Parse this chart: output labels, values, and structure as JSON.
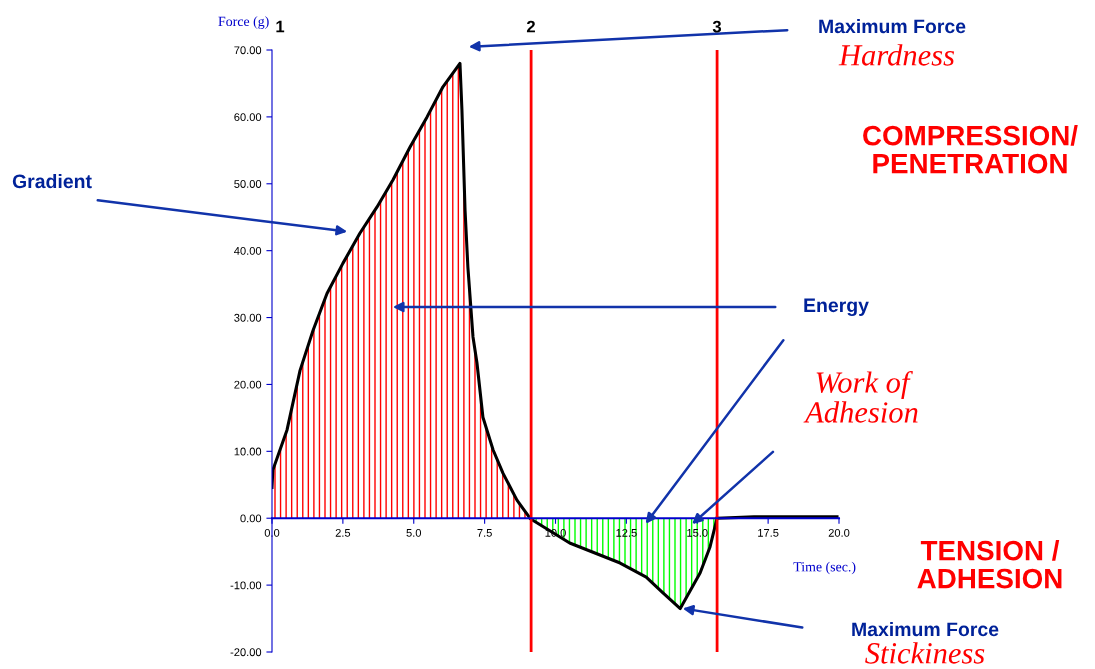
{
  "chart_data": {
    "type": "area",
    "xlabel": "Time (sec.)",
    "ylabel": "Force (g)",
    "xlim": [
      0,
      20
    ],
    "ylim": [
      -20,
      70
    ],
    "xticks": [
      {
        "value": 0,
        "label": "0.0"
      },
      {
        "value": 2.5,
        "label": "2.5"
      },
      {
        "value": 5,
        "label": "5.0"
      },
      {
        "value": 7.5,
        "label": "7.5"
      },
      {
        "value": 10,
        "label": "10.0"
      },
      {
        "value": 12.5,
        "label": "12.5"
      },
      {
        "value": 15,
        "label": "15.0"
      },
      {
        "value": 17.5,
        "label": "17.5"
      },
      {
        "value": 20,
        "label": "20.0"
      }
    ],
    "yticks": [
      {
        "value": -20,
        "label": "-20.00"
      },
      {
        "value": -10,
        "label": "-10.00"
      },
      {
        "value": 0,
        "label": "0.00"
      },
      {
        "value": 10,
        "label": "10.00"
      },
      {
        "value": 20,
        "label": "20.00"
      },
      {
        "value": 30,
        "label": "30.00"
      },
      {
        "value": 40,
        "label": "40.00"
      },
      {
        "value": 50,
        "label": "50.00"
      },
      {
        "value": 60,
        "label": "60.00"
      },
      {
        "value": 70,
        "label": "70.00"
      }
    ],
    "grid": false,
    "series": [
      {
        "color": "#ff0000",
        "x": [
          0,
          0.03,
          0.53,
          0.99,
          1.45,
          1.94,
          2.5,
          3.1,
          3.7,
          4.27,
          4.87,
          5.47,
          6.03,
          6.63,
          6.7,
          6.81,
          6.91,
          7.09,
          7.23,
          7.44,
          7.8,
          8.15,
          8.64,
          9.1
        ],
        "values": [
          4.6,
          7.2,
          13.2,
          22.1,
          28.1,
          33.6,
          38.1,
          42.6,
          46.5,
          50.6,
          55.5,
          60,
          64.5,
          68,
          61,
          46,
          37.5,
          27.1,
          23.2,
          15.1,
          10.2,
          6.7,
          2.7,
          0
        ]
      },
      {
        "color": "#00ff00",
        "x": [
          9.1,
          9.2,
          10.5,
          12.28,
          13.2,
          13.8,
          14.4,
          15.1,
          15.45,
          15.7
        ],
        "values": [
          0,
          -0.3,
          -3.7,
          -6.7,
          -8.8,
          -11.2,
          -13.5,
          -8.2,
          -4.3,
          0
        ]
      },
      {
        "type": "line",
        "color": "#000000",
        "x": [
          15.7,
          17,
          18.5,
          19.93
        ],
        "values": [
          0,
          0.2,
          0.2,
          0.2
        ]
      }
    ],
    "ref_lines": [
      {
        "axis": "x",
        "value": 9.14,
        "color": "#ff0000"
      },
      {
        "axis": "x",
        "value": 15.7,
        "color": "#ff0000"
      }
    ],
    "annotations": [
      "Maximum Force",
      "Hardness",
      "COMPRESSION/\nPENETRATION",
      "Gradient",
      "Energy",
      "Work of\nAdhesion",
      "TENSION /\nADHESION",
      "Maximum Force",
      "Stickiness",
      "1",
      "2",
      "3"
    ]
  }
}
